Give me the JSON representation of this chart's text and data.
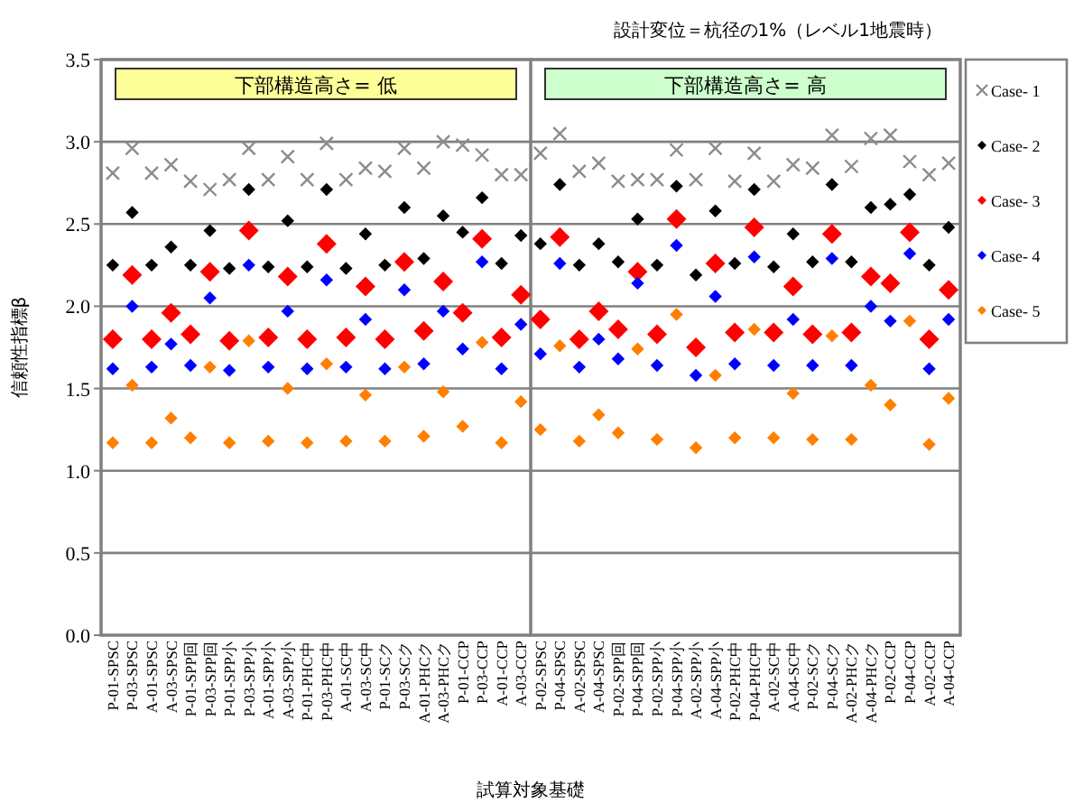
{
  "chart_data": {
    "type": "scatter",
    "title": "設計変位＝杭径の1%（レベル1地震時）",
    "xlabel": "試算対象基礎",
    "ylabel": "信頼性指標β",
    "annotations": [
      "下部構造高さ= 低",
      "下部構造高さ= 高"
    ],
    "categories": [
      "P-01-SPSC",
      "P-03-SPSC",
      "A-01-SPSC",
      "A-03-SPSC",
      "P-01-SPP回",
      "P-03-SPP回",
      "P-01-SPP小",
      "P-03-SPP小",
      "A-01-SPP小",
      "A-03-SPP小",
      "P-01-PHC中",
      "P-03-PHC中",
      "A-01-SC中",
      "A-03-SC中",
      "P-01-SCク",
      "P-03-SCク",
      "A-01-PHCク",
      "A-03-PHCク",
      "P-01-CCP",
      "P-03-CCP",
      "A-01-CCP",
      "A-03-CCP",
      "P-02-SPSC",
      "P-04-SPSC",
      "A-02-SPSC",
      "A-04-SPSC",
      "P-02-SPP回",
      "P-04-SPP回",
      "P-02-SPP小",
      "P-04-SPP小",
      "A-02-SPP小",
      "A-04-SPP小",
      "P-02-PHC中",
      "P-04-PHC中",
      "A-02-SC中",
      "A-04-SC中",
      "P-02-SCク",
      "P-04-SCク",
      "A-02-PHCク",
      "A-04-PHCク",
      "P-02-CCP",
      "P-04-CCP",
      "A-02-CCP",
      "A-04-CCP"
    ],
    "series": [
      {
        "name": "Case- 1",
        "color": "#8c8c8c",
        "marker": "cross",
        "values": [
          2.81,
          2.96,
          2.81,
          2.86,
          2.76,
          2.71,
          2.77,
          2.96,
          2.77,
          2.91,
          2.77,
          2.99,
          2.77,
          2.84,
          2.82,
          2.96,
          2.84,
          3.0,
          2.98,
          2.92,
          2.8,
          2.8,
          2.93,
          3.05,
          2.82,
          2.87,
          2.76,
          2.77,
          2.77,
          2.95,
          2.77,
          2.96,
          2.76,
          2.93,
          2.76,
          2.86,
          2.84,
          3.04,
          2.85,
          3.02,
          3.04,
          2.88,
          2.8,
          2.87
        ]
      },
      {
        "name": "Case- 2",
        "color": "#000000",
        "marker": "diamond",
        "values": [
          2.25,
          2.57,
          2.25,
          2.36,
          2.25,
          2.46,
          2.23,
          2.71,
          2.24,
          2.52,
          2.24,
          2.71,
          2.23,
          2.44,
          2.25,
          2.6,
          2.29,
          2.55,
          2.45,
          2.66,
          2.26,
          2.43,
          2.38,
          2.74,
          2.25,
          2.38,
          2.27,
          2.53,
          2.25,
          2.73,
          2.19,
          2.58,
          2.26,
          2.71,
          2.24,
          2.44,
          2.27,
          2.74,
          2.27,
          2.6,
          2.62,
          2.68,
          2.25,
          2.48
        ]
      },
      {
        "name": "Case- 3",
        "color": "#ff0000",
        "marker": "diamond",
        "values": [
          1.8,
          2.19,
          1.8,
          1.96,
          1.83,
          2.21,
          1.79,
          2.46,
          1.81,
          2.18,
          1.8,
          2.38,
          1.81,
          2.12,
          1.8,
          2.27,
          1.85,
          2.15,
          1.96,
          2.41,
          1.81,
          2.07,
          1.92,
          2.42,
          1.8,
          1.97,
          1.86,
          2.21,
          1.83,
          2.53,
          1.75,
          2.26,
          1.84,
          2.48,
          1.84,
          2.12,
          1.83,
          2.44,
          1.84,
          2.18,
          2.14,
          2.45,
          1.8,
          2.1
        ]
      },
      {
        "name": "Case- 4",
        "color": "#0000ff",
        "marker": "diamond",
        "values": [
          1.62,
          2.0,
          1.63,
          1.77,
          1.64,
          2.05,
          1.61,
          2.25,
          1.63,
          1.97,
          1.62,
          2.16,
          1.63,
          1.92,
          1.62,
          2.1,
          1.65,
          1.97,
          1.74,
          2.27,
          1.62,
          1.89,
          1.71,
          2.26,
          1.63,
          1.8,
          1.68,
          2.14,
          1.64,
          2.37,
          1.58,
          2.06,
          1.65,
          2.3,
          1.64,
          1.92,
          1.64,
          2.29,
          1.64,
          2.0,
          1.91,
          2.32,
          1.62,
          1.92
        ]
      },
      {
        "name": "Case- 5",
        "color": "#ff7f00",
        "marker": "diamond",
        "values": [
          1.17,
          1.52,
          1.17,
          1.32,
          1.2,
          1.63,
          1.17,
          1.79,
          1.18,
          1.5,
          1.17,
          1.65,
          1.18,
          1.46,
          1.18,
          1.63,
          1.21,
          1.48,
          1.27,
          1.78,
          1.17,
          1.42,
          1.25,
          1.76,
          1.18,
          1.34,
          1.23,
          1.74,
          1.19,
          1.95,
          1.14,
          1.58,
          1.2,
          1.86,
          1.2,
          1.47,
          1.19,
          1.82,
          1.19,
          1.52,
          1.4,
          1.91,
          1.16,
          1.44
        ]
      }
    ],
    "ylim": [
      0,
      3.5
    ],
    "yticks": [
      {
        "value": 0,
        "label": "0.0"
      },
      {
        "value": 0.5,
        "label": "0.5"
      },
      {
        "value": 1,
        "label": "1.0"
      },
      {
        "value": 1.5,
        "label": "1.5"
      },
      {
        "value": 2,
        "label": "2.0"
      },
      {
        "value": 2.5,
        "label": "2.5"
      },
      {
        "value": 3,
        "label": "3.0"
      },
      {
        "value": 3.5,
        "label": "3.5"
      }
    ],
    "grid": "y",
    "legend": "right"
  }
}
